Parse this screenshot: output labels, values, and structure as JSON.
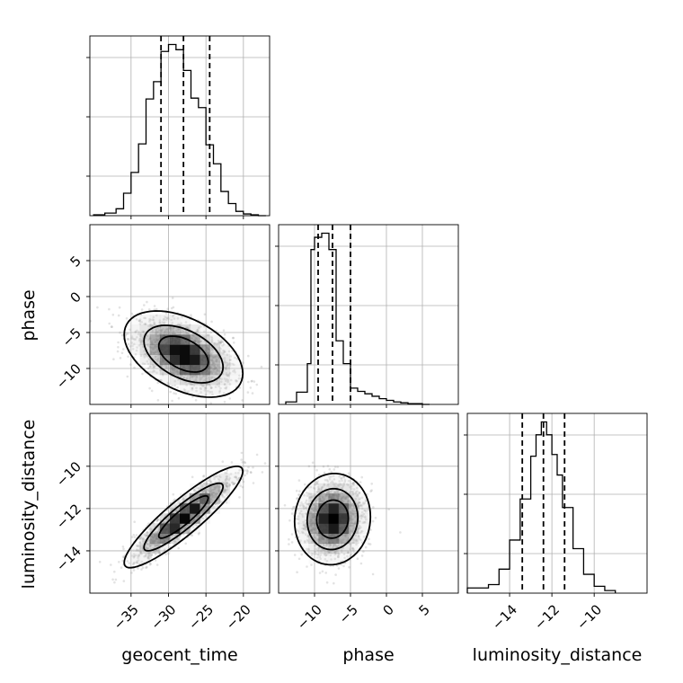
{
  "chart_data": {
    "type": "corner",
    "parameters": [
      "geocent_time",
      "phase",
      "luminosity_distance"
    ],
    "grid": true,
    "axis_labels": {
      "x": [
        "geocent_time",
        "phase",
        "luminosity_distance"
      ],
      "y": [
        "",
        "phase",
        "luminosity_distance"
      ]
    },
    "axes": {
      "geocent_time": {
        "range": [
          -40.5,
          -16.5
        ],
        "ticks": [
          -35,
          -30,
          -25,
          -20
        ],
        "tick_labels": [
          "−35",
          "−30",
          "−25",
          "−20"
        ]
      },
      "phase": {
        "range": [
          -15,
          10
        ],
        "ticks": [
          -10,
          -5,
          0,
          5
        ],
        "tick_labels": [
          "−10",
          "−5",
          "0",
          "5"
        ]
      },
      "luminosity_distance": {
        "range": [
          -16,
          -7.5
        ],
        "ticks": [
          -14,
          -12,
          -10
        ],
        "tick_labels": [
          "−14",
          "−12",
          "−10"
        ]
      }
    },
    "histograms": [
      {
        "parameter": "geocent_time",
        "bin_edges": [
          -40,
          -38.5,
          -37,
          -36,
          -35,
          -34,
          -33,
          -32,
          -31,
          -30,
          -29,
          -28,
          -27,
          -26,
          -25,
          -24,
          -23,
          -22,
          -21,
          -20,
          -19,
          -18,
          -17
        ],
        "counts": [
          1,
          3,
          8,
          26,
          50,
          83,
          135,
          155,
          190,
          198,
          192,
          168,
          136,
          125,
          82,
          60,
          28,
          14,
          5,
          2,
          1,
          0
        ],
        "quantiles": [
          -31,
          -28,
          -24.5
        ]
      },
      {
        "parameter": "phase",
        "bin_edges": [
          -14,
          -12.5,
          -11,
          -10.5,
          -10,
          -9,
          -8,
          -7,
          -6,
          -5,
          -4,
          -3,
          -2,
          -1,
          0,
          1,
          2,
          3,
          4,
          5,
          6
        ],
        "counts": [
          3,
          15,
          50,
          190,
          205,
          210,
          190,
          78,
          50,
          20,
          16,
          13,
          10,
          7,
          5,
          3,
          2,
          1,
          1,
          0
        ],
        "quantiles": [
          -9.5,
          -7.5,
          -5
        ]
      },
      {
        "parameter": "luminosity_distance",
        "bin_edges": [
          -16,
          -15,
          -14.5,
          -14,
          -13.5,
          -13,
          -12.75,
          -12.5,
          -12.25,
          -12,
          -11.75,
          -11.5,
          -11,
          -10.5,
          -10,
          -9.5,
          -9
        ],
        "counts": [
          6,
          10,
          28,
          62,
          110,
          160,
          185,
          200,
          185,
          162,
          138,
          100,
          52,
          22,
          8,
          3
        ],
        "quantiles": [
          -13.4,
          -12.4,
          -11.4
        ]
      }
    ],
    "pair_panels": [
      {
        "x": "geocent_time",
        "y": "phase",
        "center": [
          -28,
          -8
        ],
        "spread": [
          3.3,
          2.5
        ],
        "correlation": -0.45,
        "contour_levels_sigma": [
          1,
          1.6,
          2.4
        ],
        "scatter_count": 1600
      },
      {
        "x": "geocent_time",
        "y": "luminosity_distance",
        "center": [
          -28,
          -12.4
        ],
        "spread": [
          3.3,
          1.0
        ],
        "correlation": 0.9,
        "contour_levels_sigma": [
          1,
          1.6,
          2.4
        ],
        "scatter_count": 1600
      },
      {
        "x": "phase",
        "y": "luminosity_distance",
        "center": [
          -7.5,
          -12.5
        ],
        "spread": [
          2.2,
          0.9
        ],
        "correlation": 0.05,
        "contour_levels_sigma": [
          1,
          1.6,
          2.4
        ],
        "scatter_count": 1600
      }
    ]
  }
}
